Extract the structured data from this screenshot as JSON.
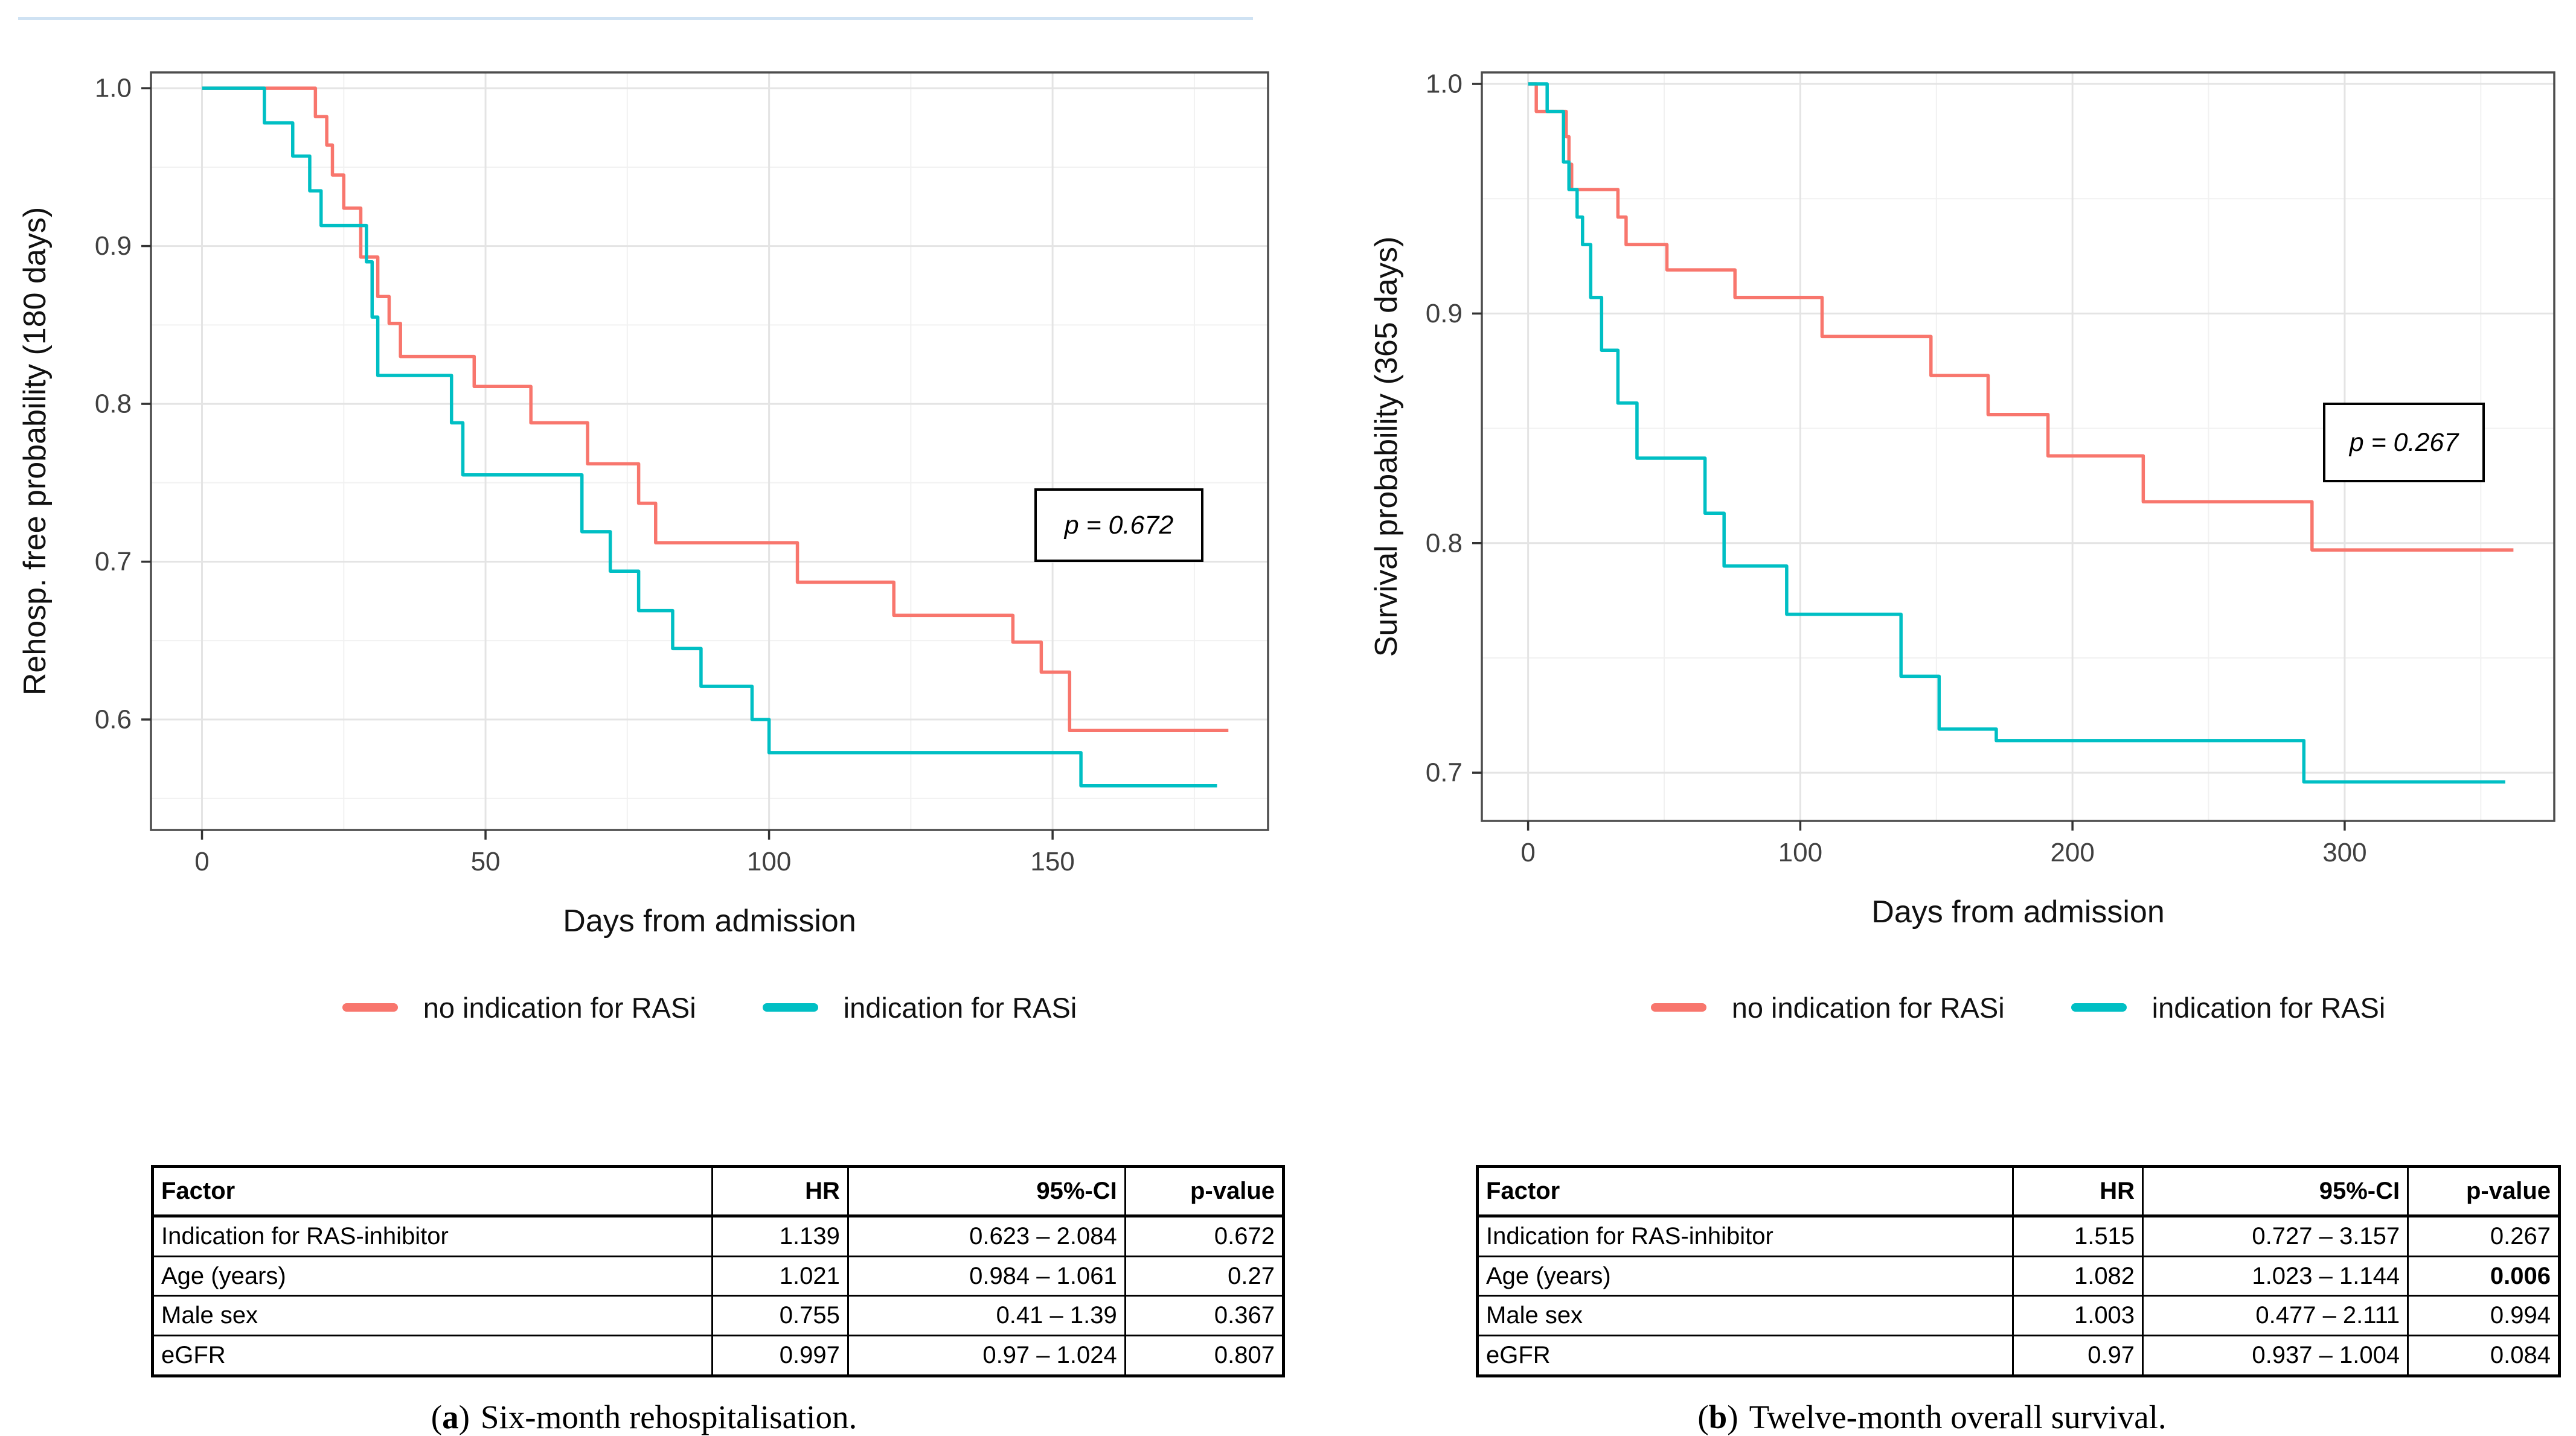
{
  "page": {
    "background": "#ffffff",
    "top_rule_color": "#cfe2f3",
    "accent_red": "#F8766D",
    "accent_teal": "#00BFC4"
  },
  "chart_data": [
    {
      "type": "line",
      "subtype": "kaplan-meier-step",
      "title": "",
      "xlabel": "Days from admission",
      "ylabel": "Rehosp. free probability (180 days)",
      "xlim": [
        -9,
        188
      ],
      "ylim": [
        0.53,
        1.01
      ],
      "xticks": [
        "0",
        "50",
        "100",
        "150"
      ],
      "yticks": [
        "0.6",
        "0.7",
        "0.8",
        "0.9",
        "1.0"
      ],
      "grid": true,
      "legend_position": "bottom",
      "annotation": "p = 0.672",
      "series": [
        {
          "name": "no indication for RASi",
          "color": "#F8766D",
          "x": [
            0,
            20,
            22,
            23,
            25,
            28,
            31,
            33,
            35,
            48,
            58,
            68,
            77,
            80,
            105,
            122,
            143,
            148,
            153,
            181
          ],
          "y": [
            1.0,
            0.982,
            0.964,
            0.945,
            0.924,
            0.893,
            0.868,
            0.851,
            0.83,
            0.811,
            0.788,
            0.762,
            0.737,
            0.712,
            0.687,
            0.666,
            0.649,
            0.63,
            0.593,
            0.593
          ]
        },
        {
          "name": "indication for RASi",
          "color": "#00BFC4",
          "x": [
            0,
            11,
            16,
            19,
            21,
            29,
            30,
            31,
            44,
            46,
            67,
            72,
            77,
            83,
            88,
            97,
            100,
            155,
            179
          ],
          "y": [
            1.0,
            0.978,
            0.957,
            0.935,
            0.913,
            0.89,
            0.855,
            0.818,
            0.788,
            0.755,
            0.719,
            0.694,
            0.669,
            0.645,
            0.621,
            0.6,
            0.579,
            0.558,
            0.558
          ]
        }
      ]
    },
    {
      "type": "line",
      "subtype": "kaplan-meier-step",
      "title": "",
      "xlabel": "Days from admission",
      "ylabel": "Survival probability (365 days)",
      "xlim": [
        -17,
        377
      ],
      "ylim": [
        0.679,
        1.005
      ],
      "xticks": [
        "0",
        "100",
        "200",
        "300"
      ],
      "yticks": [
        "0.7",
        "0.8",
        "0.9",
        "1.0"
      ],
      "grid": true,
      "legend_position": "bottom",
      "annotation": "p = 0.267",
      "series": [
        {
          "name": "no indication for RASi",
          "color": "#F8766D",
          "x": [
            0,
            3,
            14,
            15,
            16,
            33,
            36,
            51,
            76,
            108,
            148,
            169,
            191,
            226,
            288,
            362
          ],
          "y": [
            1.0,
            0.988,
            0.977,
            0.965,
            0.954,
            0.942,
            0.93,
            0.919,
            0.907,
            0.89,
            0.873,
            0.856,
            0.838,
            0.818,
            0.797,
            0.797
          ]
        },
        {
          "name": "indication for RASi",
          "color": "#00BFC4",
          "x": [
            0,
            7,
            13,
            15,
            18,
            20,
            23,
            27,
            33,
            40,
            65,
            72,
            95,
            137,
            151,
            172,
            285,
            359
          ],
          "y": [
            1.0,
            0.988,
            0.966,
            0.954,
            0.942,
            0.93,
            0.907,
            0.884,
            0.861,
            0.837,
            0.813,
            0.79,
            0.769,
            0.742,
            0.719,
            0.714,
            0.696,
            0.696
          ]
        }
      ]
    }
  ],
  "panels": [
    {
      "caption": {
        "open": "(",
        "marker": "a",
        "close": ")",
        "text": "Six-month rehospitalisation."
      },
      "table": {
        "headers": [
          "Factor",
          "HR",
          "95%-CI",
          "p-value"
        ],
        "rows": [
          [
            "Indication for RAS-inhibitor",
            "1.139",
            "0.623 – 2.084",
            "0.672"
          ],
          [
            "Age (years)",
            "1.021",
            "0.984 – 1.061",
            "0.27"
          ],
          [
            "Male sex",
            "0.755",
            "0.41 – 1.39",
            "0.367"
          ],
          [
            "eGFR",
            "0.997",
            "0.97 – 1.024",
            "0.807"
          ]
        ]
      }
    },
    {
      "caption": {
        "open": "(",
        "marker": "b",
        "close": ")",
        "text": "Twelve-month overall survival."
      },
      "table": {
        "headers": [
          "Factor",
          "HR",
          "95%-CI",
          "p-value"
        ],
        "rows": [
          [
            "Indication for RAS-inhibitor",
            "1.515",
            "0.727 – 3.157",
            "0.267"
          ],
          [
            "Age (years)",
            "1.082",
            "1.023 – 1.144",
            "0.006"
          ],
          [
            "Male sex",
            "1.003",
            "0.477 – 2.111",
            "0.994"
          ],
          [
            "eGFR",
            "0.97",
            "0.937 – 1.004",
            "0.084"
          ]
        ]
      }
    }
  ]
}
